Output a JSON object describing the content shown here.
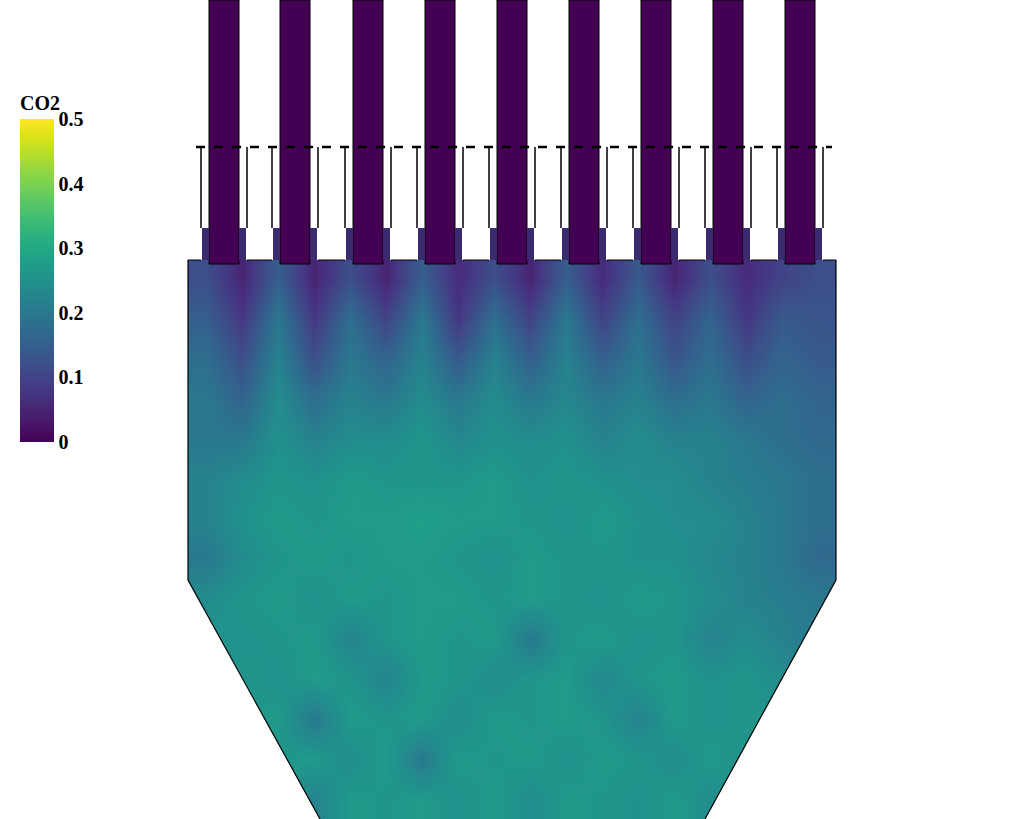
{
  "chart_data": {
    "type": "heatmap",
    "colorbar_title": "CO2",
    "color": "Viridis",
    "color_range": [
      0,
      0.5
    ],
    "color_ticks": [
      0,
      0.1,
      0.2,
      0.3,
      0.4,
      0.5
    ],
    "tick_labels": false,
    "cells": [
      [
        0.12,
        0.05,
        0.15,
        0.05,
        0.12,
        0.05,
        0.15,
        0.06,
        0.12,
        0.05,
        0.15,
        0.06,
        0.14,
        0.05,
        0.12,
        0.06,
        0.1,
        0.12
      ],
      [
        0.15,
        0.08,
        0.2,
        0.08,
        0.18,
        0.1,
        0.2,
        0.08,
        0.18,
        0.1,
        0.2,
        0.1,
        0.18,
        0.1,
        0.16,
        0.08,
        0.14,
        0.13
      ],
      [
        0.18,
        0.12,
        0.22,
        0.12,
        0.2,
        0.16,
        0.22,
        0.14,
        0.22,
        0.15,
        0.22,
        0.15,
        0.2,
        0.13,
        0.18,
        0.12,
        0.16,
        0.14
      ],
      [
        0.2,
        0.16,
        0.24,
        0.18,
        0.22,
        0.2,
        0.24,
        0.2,
        0.24,
        0.2,
        0.23,
        0.2,
        0.22,
        0.18,
        0.2,
        0.16,
        0.18,
        0.16
      ],
      [
        0.2,
        0.2,
        0.25,
        0.22,
        0.24,
        0.24,
        0.26,
        0.23,
        0.25,
        0.24,
        0.25,
        0.22,
        0.24,
        0.22,
        0.22,
        0.2,
        0.18,
        0.17
      ],
      [
        0.22,
        0.24,
        0.26,
        0.25,
        0.27,
        0.26,
        0.26,
        0.26,
        0.27,
        0.25,
        0.26,
        0.25,
        0.24,
        0.24,
        0.22,
        0.21,
        0.2,
        0.18
      ],
      [
        0.22,
        0.25,
        0.27,
        0.26,
        0.27,
        0.27,
        0.28,
        0.27,
        0.27,
        0.26,
        0.25,
        0.27,
        0.25,
        0.24,
        0.24,
        0.22,
        0.2,
        0.18
      ],
      [
        0.2,
        0.24,
        0.26,
        0.27,
        0.26,
        0.27,
        0.27,
        0.26,
        0.25,
        0.27,
        0.26,
        0.26,
        0.25,
        0.25,
        0.23,
        0.22,
        0.2,
        0.17
      ],
      [
        0.24,
        0.26,
        0.27,
        0.25,
        0.27,
        0.26,
        0.27,
        0.27,
        0.26,
        0.27,
        0.26,
        0.25,
        0.27,
        0.26,
        0.24,
        0.22,
        0.21,
        0.2
      ],
      [
        0.26,
        0.25,
        0.26,
        0.27,
        0.22,
        0.26,
        0.27,
        0.26,
        0.27,
        0.2,
        0.26,
        0.27,
        0.25,
        0.26,
        0.22,
        0.24,
        0.22,
        0.2
      ],
      [
        0.26,
        0.26,
        0.25,
        0.27,
        0.26,
        0.22,
        0.27,
        0.26,
        0.24,
        0.26,
        0.27,
        0.23,
        0.26,
        0.27,
        0.25,
        0.26,
        0.24,
        0.22
      ],
      [
        0.25,
        0.26,
        0.27,
        0.2,
        0.27,
        0.26,
        0.27,
        0.24,
        0.27,
        0.26,
        0.27,
        0.26,
        0.22,
        0.27,
        0.25,
        0.26,
        0.25,
        0.24
      ],
      [
        0.25,
        0.25,
        0.26,
        0.27,
        0.24,
        0.27,
        0.2,
        0.27,
        0.26,
        0.27,
        0.25,
        0.27,
        0.26,
        0.24,
        0.27,
        0.25,
        0.24,
        0.24
      ],
      [
        0.24,
        0.25,
        0.26,
        0.22,
        0.27,
        0.26,
        0.27,
        0.25,
        0.27,
        0.24,
        0.27,
        0.26,
        0.25,
        0.27,
        0.24,
        0.26,
        0.24,
        0.24
      ]
    ]
  }
}
